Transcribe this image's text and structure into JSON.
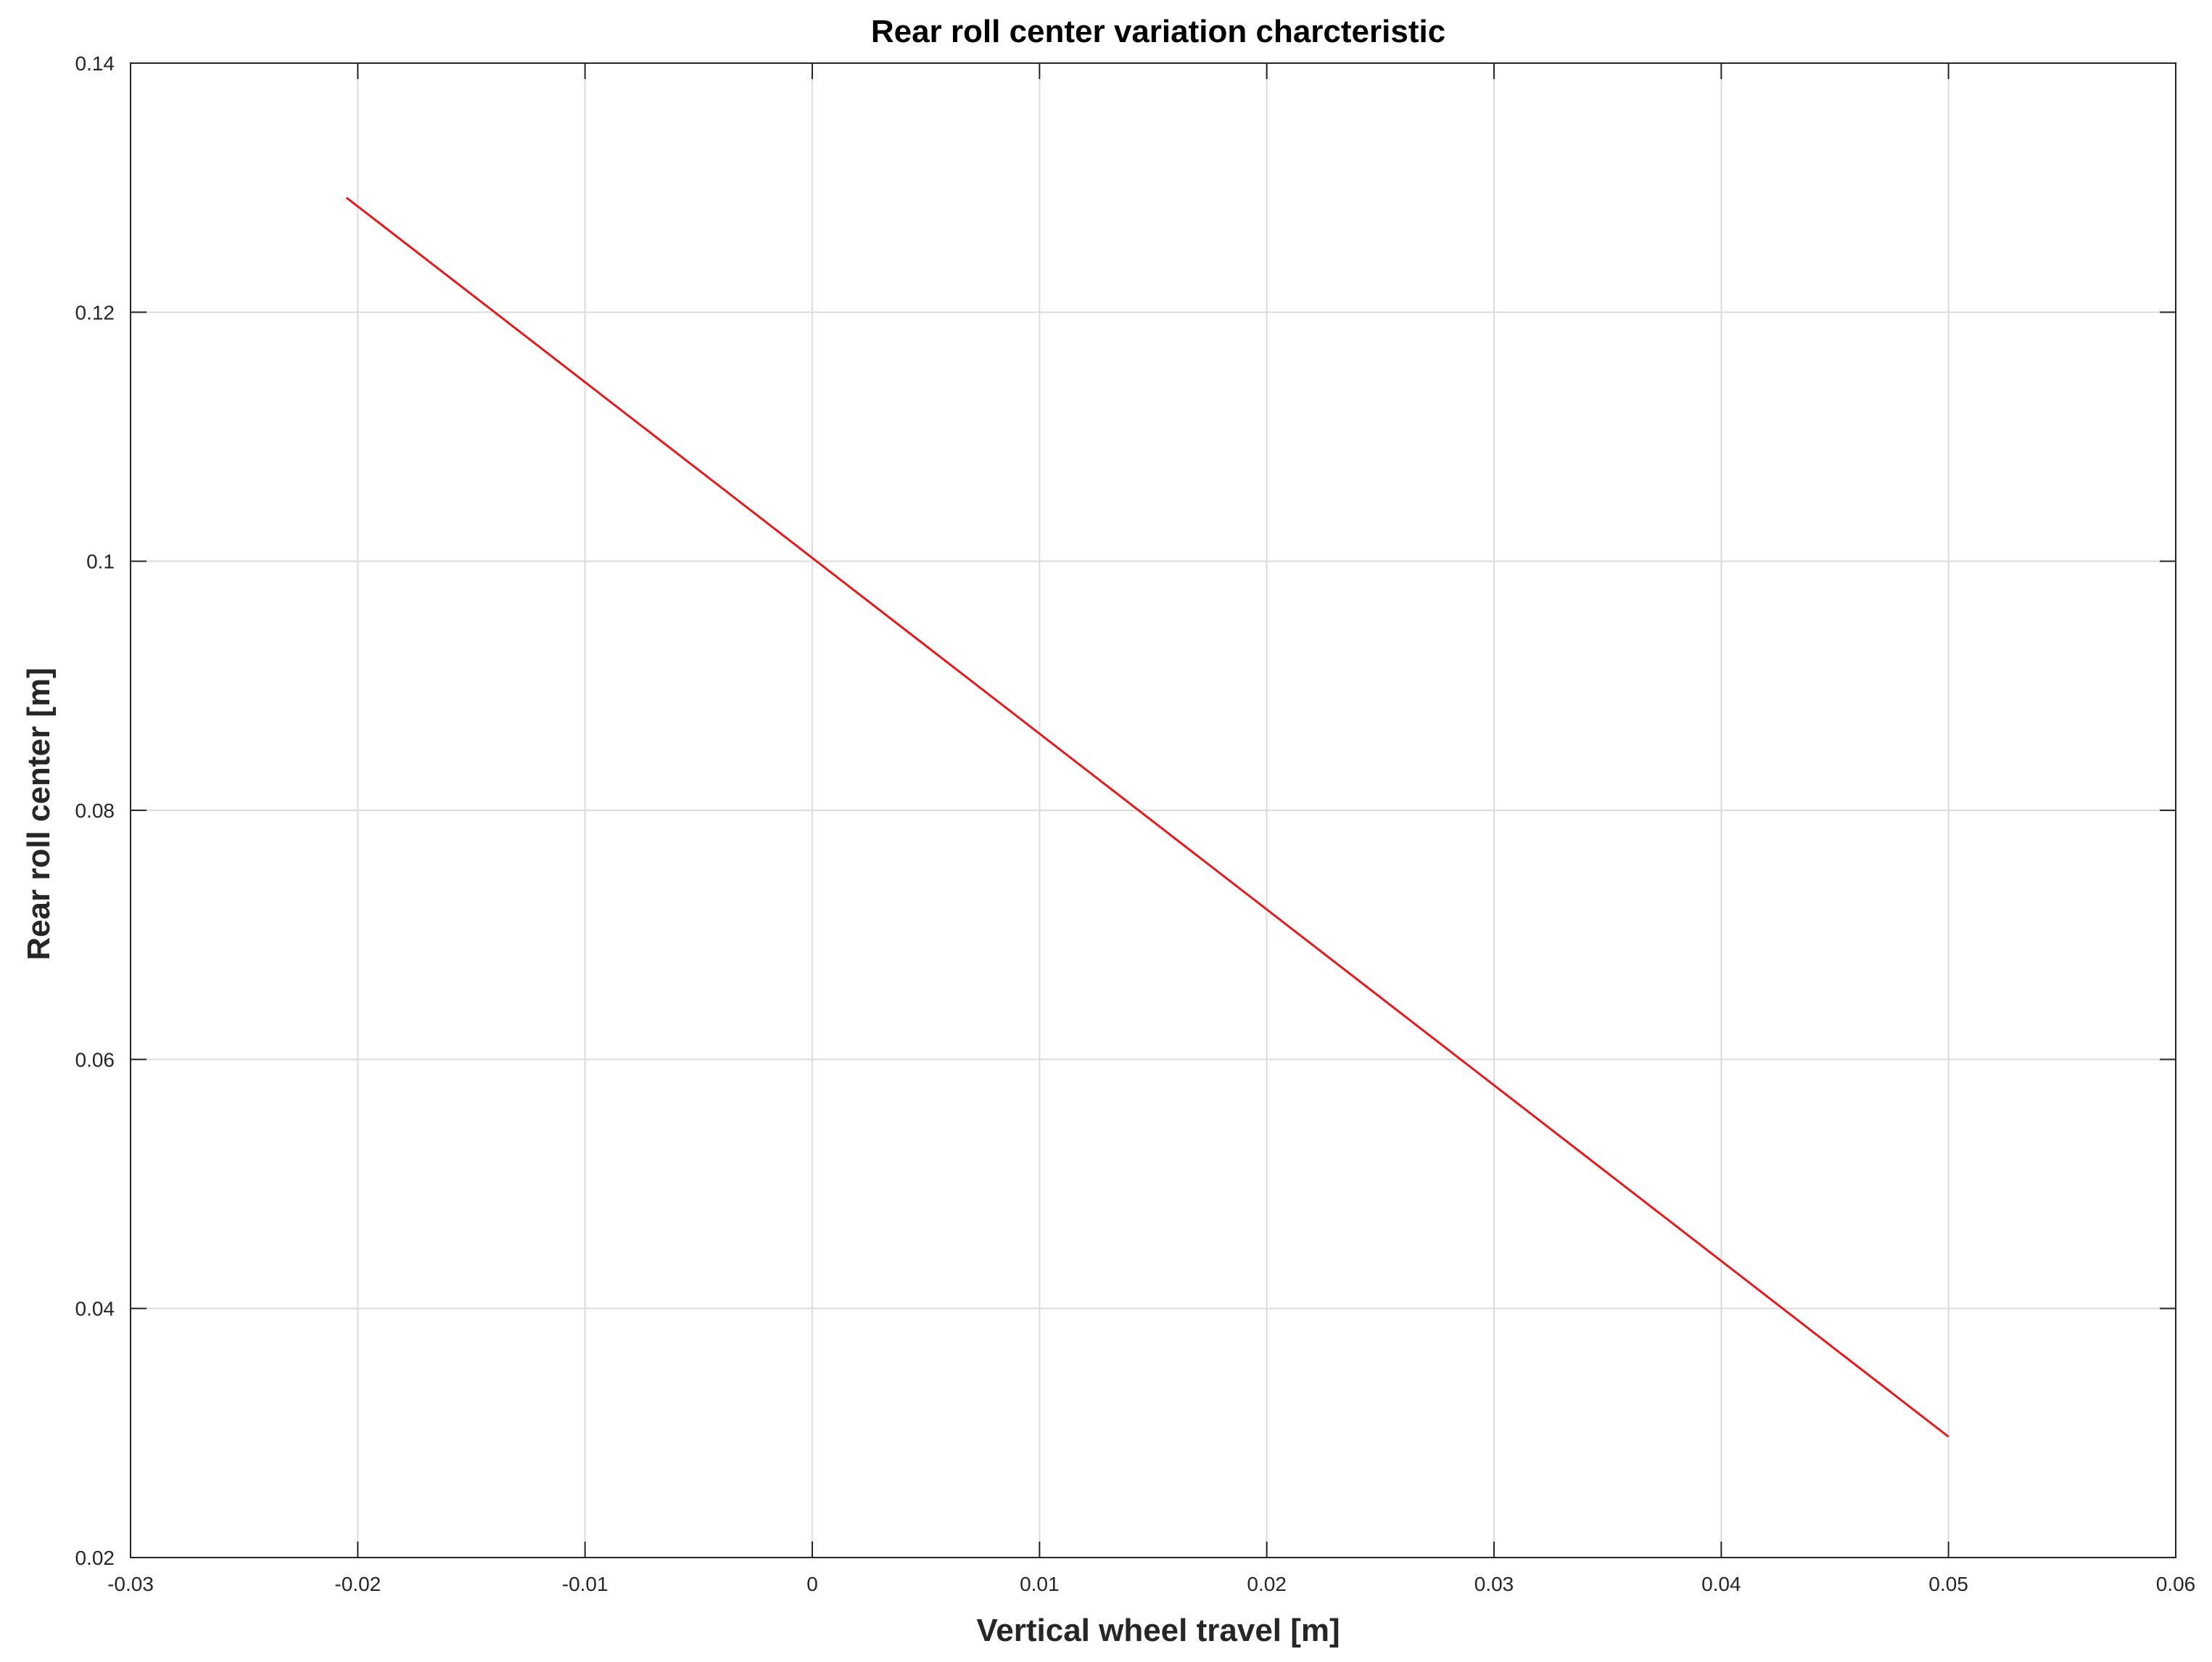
{
  "chart_data": {
    "type": "line",
    "title": "Rear roll center variation charcteristic",
    "xlabel": "Vertical wheel travel [m]",
    "ylabel": "Rear roll center [m]",
    "xlim": [
      -0.03,
      0.06
    ],
    "ylim": [
      0.02,
      0.14
    ],
    "xticks": [
      -0.03,
      -0.02,
      -0.01,
      0,
      0.01,
      0.02,
      0.03,
      0.04,
      0.05,
      0.06
    ],
    "xtick_labels": [
      "-0.03",
      "-0.02",
      "-0.01",
      "0",
      "0.01",
      "0.02",
      "0.03",
      "0.04",
      "0.05",
      "0.06"
    ],
    "yticks": [
      0.02,
      0.04,
      0.06,
      0.08,
      0.1,
      0.12,
      0.14
    ],
    "ytick_labels": [
      "0.02",
      "0.04",
      "0.06",
      "0.08",
      "0.1",
      "0.12",
      "0.14"
    ],
    "grid": true,
    "legend": false,
    "series": [
      {
        "color": "#e41a1c",
        "x": [
          -0.0205,
          0.05
        ],
        "y": [
          0.1292,
          0.0297
        ]
      }
    ]
  }
}
